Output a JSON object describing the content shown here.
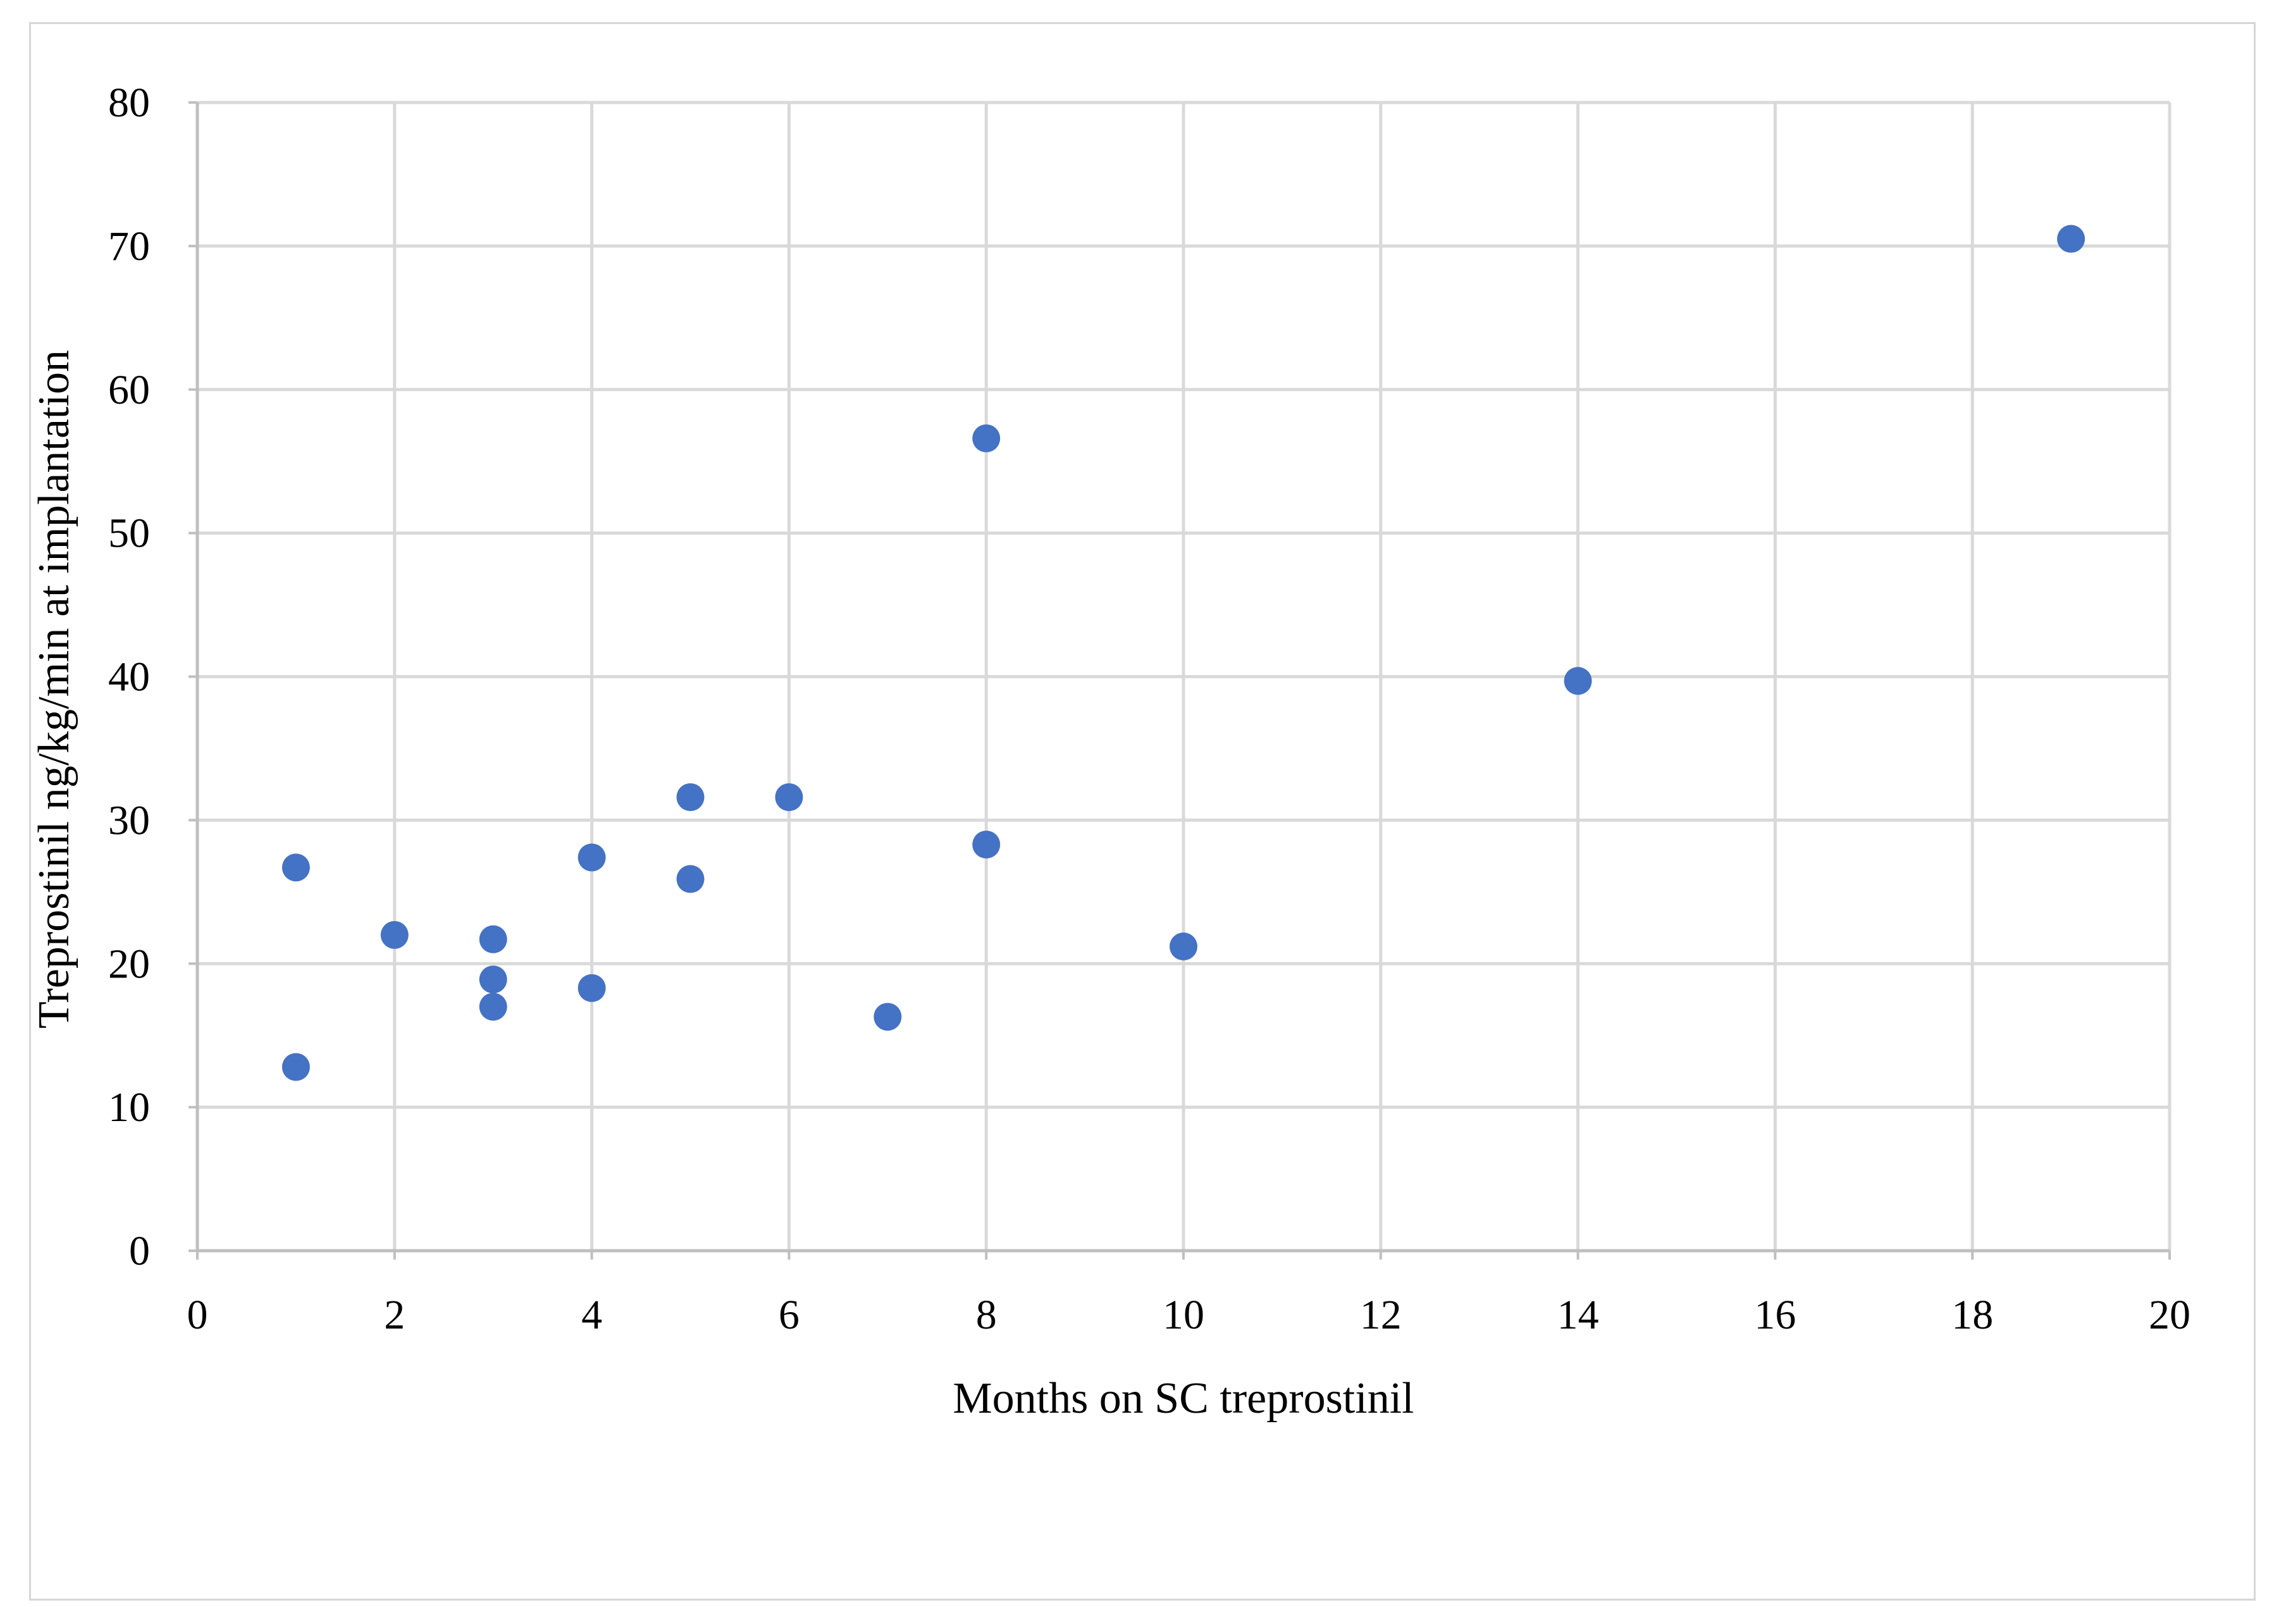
{
  "chart_data": {
    "type": "scatter",
    "title": "",
    "xlabel": "Months on SC treprostinil",
    "ylabel": "Treprostinil ng/kg/min at implantation",
    "xlim": [
      0,
      20
    ],
    "ylim": [
      0,
      80
    ],
    "x_ticks": [
      0,
      2,
      4,
      6,
      8,
      10,
      12,
      14,
      16,
      18,
      20
    ],
    "y_ticks": [
      0,
      10,
      20,
      30,
      40,
      50,
      60,
      70,
      80
    ],
    "grid": true,
    "legend": "none",
    "marker_color": "#4472C4",
    "grid_color": "#d9d9d9",
    "series": [
      {
        "points": [
          {
            "x": 1,
            "y": 26.7
          },
          {
            "x": 1,
            "y": 12.8
          },
          {
            "x": 2,
            "y": 22.0
          },
          {
            "x": 3,
            "y": 21.7
          },
          {
            "x": 3,
            "y": 18.9
          },
          {
            "x": 3,
            "y": 17.0
          },
          {
            "x": 4,
            "y": 27.4
          },
          {
            "x": 4,
            "y": 18.3
          },
          {
            "x": 5,
            "y": 31.6
          },
          {
            "x": 5,
            "y": 25.9
          },
          {
            "x": 6,
            "y": 31.6
          },
          {
            "x": 7,
            "y": 16.3
          },
          {
            "x": 8,
            "y": 56.6
          },
          {
            "x": 8,
            "y": 28.3
          },
          {
            "x": 10,
            "y": 21.2
          },
          {
            "x": 14,
            "y": 39.7
          },
          {
            "x": 19,
            "y": 70.5
          }
        ]
      }
    ]
  }
}
